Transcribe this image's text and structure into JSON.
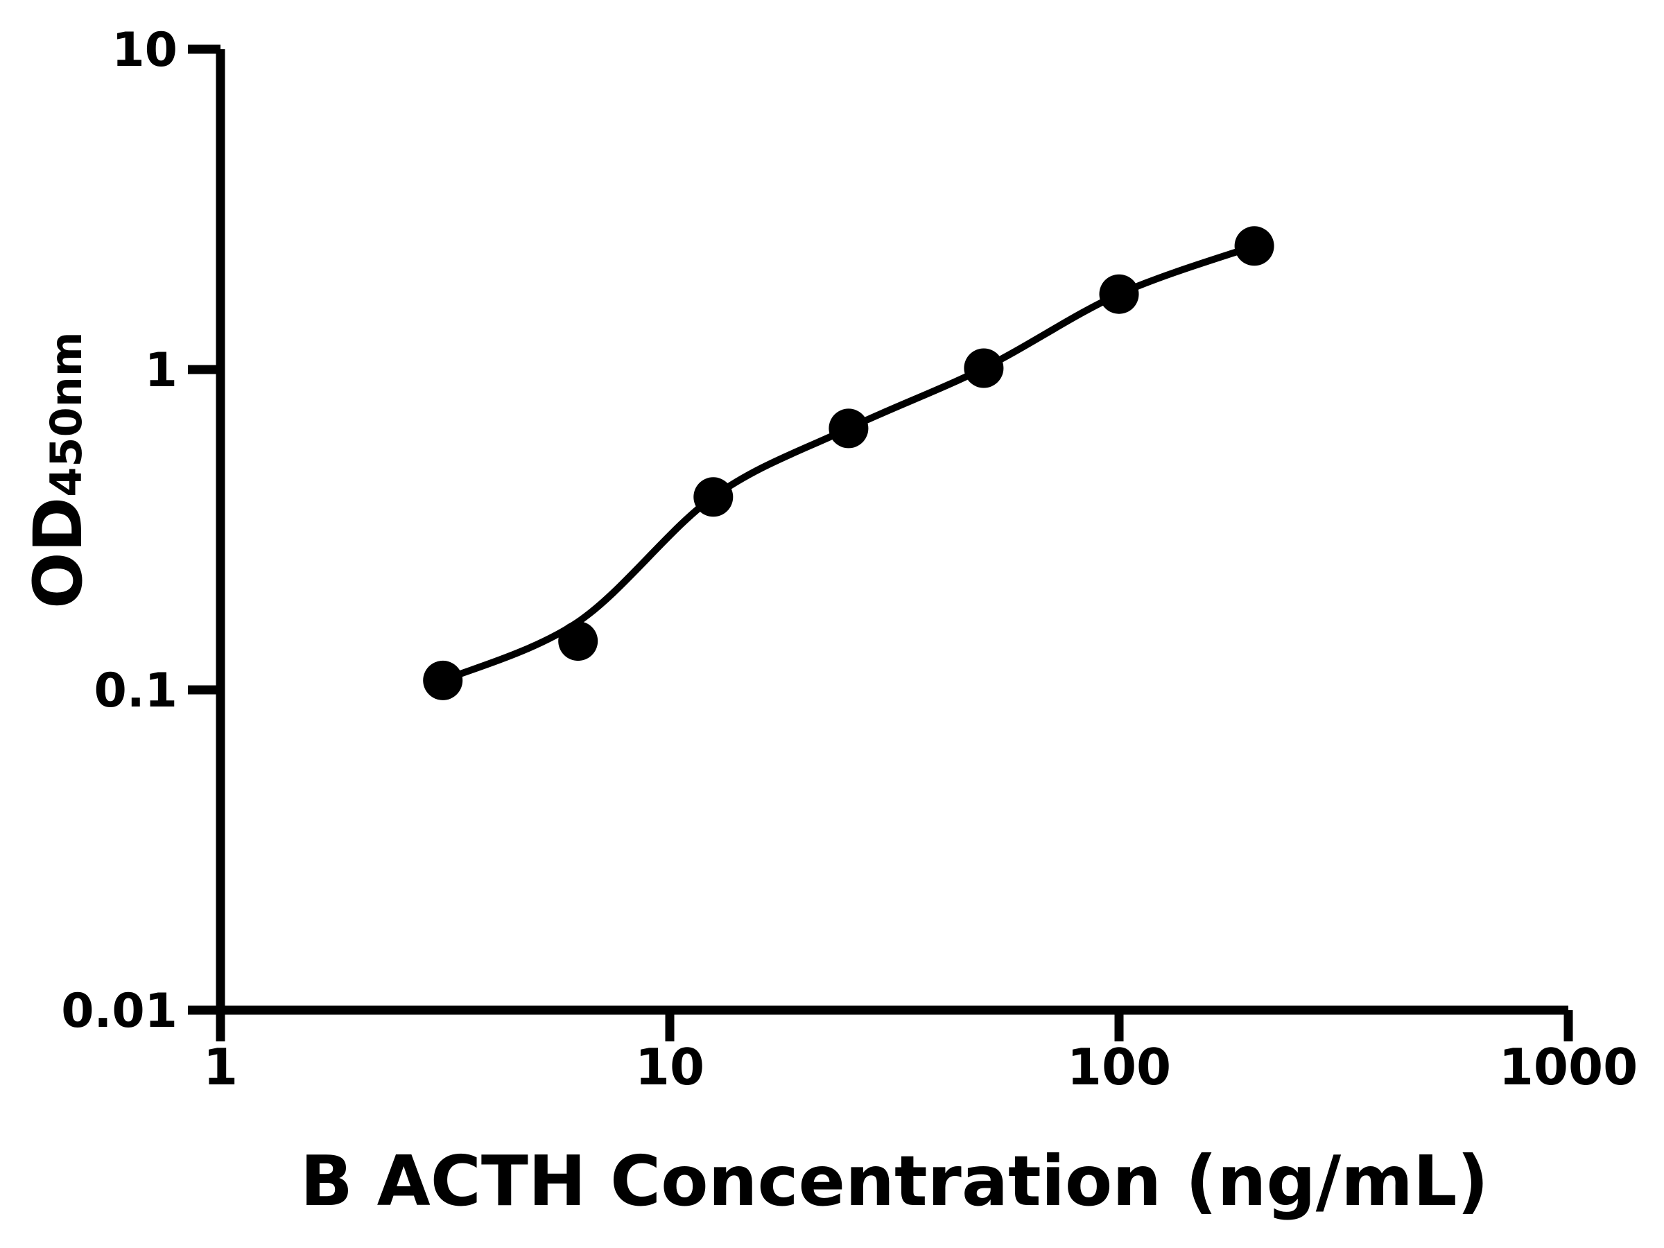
{
  "figure": {
    "background": "#ffffff",
    "foreground": "#000000"
  },
  "chart_data": {
    "type": "scatter",
    "title": "",
    "xlabel": "B ACTH Concentration (ng/mL)",
    "ylabel": "OD",
    "ylabel_subscript": "450nm",
    "xscale": "log",
    "yscale": "log",
    "xlim": [
      1,
      1000
    ],
    "ylim": [
      0.01,
      10
    ],
    "grid": false,
    "legend_position": "none",
    "x_ticks": {
      "values": [
        1,
        10,
        100,
        1000
      ],
      "labels": [
        "1",
        "10",
        "100",
        "1000"
      ]
    },
    "y_ticks": {
      "values": [
        10,
        1,
        0.1,
        0.01
      ],
      "labels": [
        "10",
        "1",
        "0.1",
        "0.01"
      ]
    },
    "series": [
      {
        "marker": "circle",
        "color": "#000000",
        "x": [
          3.125,
          6.25,
          12.5,
          25,
          50,
          100,
          200
        ],
        "y": [
          0.107,
          0.142,
          0.4,
          0.655,
          1.01,
          1.72,
          2.43
        ]
      }
    ],
    "fit_curve": {
      "color": "#000000",
      "x": [
        3.125,
        6.25,
        12.5,
        25,
        50,
        100,
        200
      ],
      "y": [
        0.107,
        0.163,
        0.4,
        0.655,
        1.01,
        1.72,
        2.43
      ]
    }
  }
}
